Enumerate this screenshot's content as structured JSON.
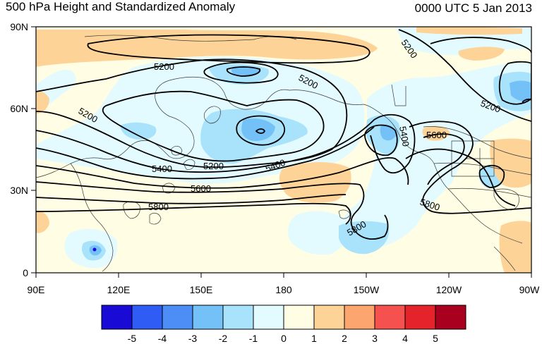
{
  "title": "500 hPa Height and Standardized Anomaly",
  "timestamp": "0000 UTC 5 Jan 2013",
  "lat_labels": [
    "90N",
    "60N",
    "30N",
    "0"
  ],
  "lon_labels": [
    "90E",
    "120E",
    "150E",
    "180",
    "150W",
    "120W",
    "90W"
  ],
  "contour_labels": [
    "5200",
    "5200",
    "5200",
    "5200",
    "5200",
    "5400",
    "5400",
    "5400",
    "5600",
    "5600",
    "5800",
    "5800",
    "5800",
    "5200"
  ],
  "colorbar": {
    "labels": [
      "-5",
      "-4",
      "-3",
      "-2",
      "-1",
      "0",
      "1",
      "2",
      "3",
      "4",
      "5"
    ],
    "colors": [
      "#1a0ad6",
      "#2e5cf5",
      "#4d8ef6",
      "#74c1f7",
      "#a8e2fb",
      "#e3fbff",
      "#fffde3",
      "#fdd398",
      "#fda56e",
      "#f5514f",
      "#e4232a",
      "#a8001e"
    ]
  },
  "colors": {
    "frame": "#000000",
    "coast": "#3a3a3a",
    "contour": "#000000"
  }
}
